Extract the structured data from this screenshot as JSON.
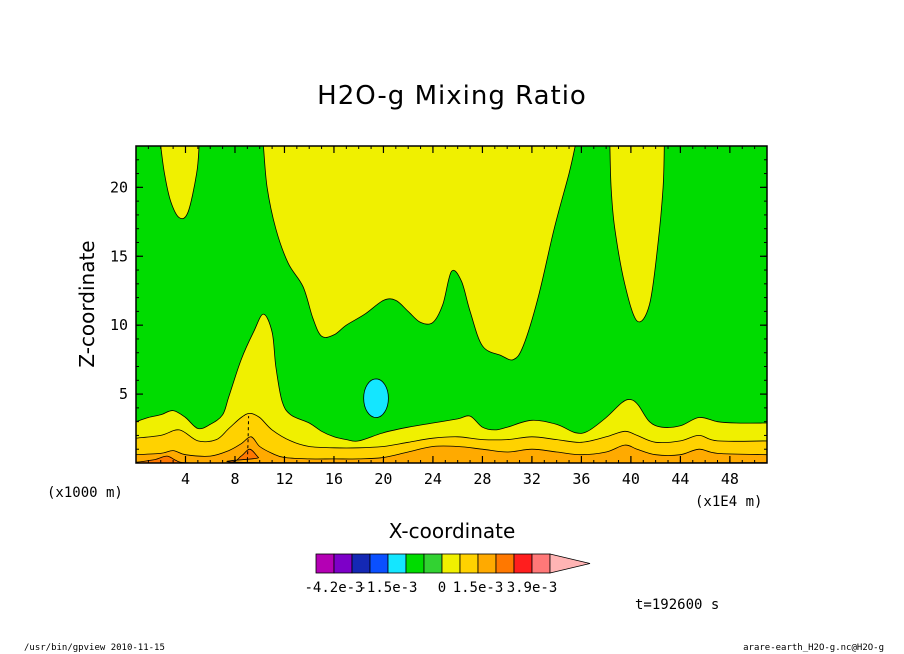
{
  "chart_data": {
    "type": "contour",
    "title": "H2O-g Mixing Ratio",
    "xlabel": "X-coordinate",
    "ylabel": "Z-coordinate",
    "x_scale_note": "(x1E4 m)",
    "y_scale_note": "(x1000 m)",
    "xlim": [
      0,
      51
    ],
    "ylim": [
      0,
      23
    ],
    "x_ticks": [
      4,
      8,
      12,
      16,
      20,
      24,
      28,
      32,
      36,
      40,
      44,
      48
    ],
    "y_ticks": [
      5,
      10,
      15,
      20
    ],
    "levels": {
      "palette": [
        "#b400b4",
        "#7d00c8",
        "#1428b4",
        "#0a50ff",
        "#14e6ff",
        "#00dc00",
        "#32d232",
        "#f0f000",
        "#ffd200",
        "#ffaa00",
        "#ff7800",
        "#ff1e1e",
        "#ff7878",
        "#ffb4b4"
      ],
      "labels": [
        "-4.2e-3",
        "-1.5e-3",
        "0",
        "1.5e-3",
        "3.9e-3"
      ]
    },
    "time_label": "t=192600 s",
    "footer_left": "/usr/bin/gpview  2010-11-15",
    "footer_right": "arare-earth_H2O-g.nc@H2O-g",
    "fields": {
      "base_color": "#00dc00",
      "yellow_top": [
        [
          2,
          23
        ],
        [
          2.3,
          21
        ],
        [
          2.8,
          19
        ],
        [
          3.5,
          17.8
        ],
        [
          4.2,
          18.2
        ],
        [
          4.9,
          21
        ],
        [
          5.1,
          23
        ]
      ],
      "yellow_mid": [
        [
          10.3,
          23
        ],
        [
          10.6,
          20
        ],
        [
          11.3,
          17
        ],
        [
          12.3,
          14.5
        ],
        [
          13.5,
          12.8
        ],
        [
          14.3,
          10.5
        ],
        [
          15,
          9.2
        ],
        [
          16,
          9.3
        ],
        [
          17,
          10
        ],
        [
          18.5,
          10.8
        ],
        [
          20,
          11.8
        ],
        [
          21,
          11.8
        ],
        [
          22,
          11
        ],
        [
          23,
          10.2
        ],
        [
          24,
          10.2
        ],
        [
          24.8,
          11.5
        ],
        [
          25.5,
          13.9
        ],
        [
          26.3,
          13.2
        ],
        [
          27,
          11
        ],
        [
          28,
          8.5
        ],
        [
          29.5,
          7.8
        ],
        [
          30.5,
          7.5
        ],
        [
          31.3,
          8.5
        ],
        [
          32.5,
          12
        ],
        [
          33.8,
          17
        ],
        [
          35,
          21
        ],
        [
          35.5,
          23
        ]
      ],
      "yellow_right": [
        [
          38.3,
          23
        ],
        [
          38.4,
          20
        ],
        [
          38.7,
          17
        ],
        [
          39.5,
          13
        ],
        [
          40.5,
          10.3
        ],
        [
          41.5,
          11.5
        ],
        [
          42.2,
          16
        ],
        [
          42.6,
          20
        ],
        [
          42.7,
          23
        ]
      ],
      "cyan_blob": {
        "cx": 19.4,
        "cy": 4.7,
        "rx": 1.0,
        "ry": 1.4
      },
      "yellow_bottom": [
        [
          0,
          3.0
        ],
        [
          1,
          3.3
        ],
        [
          2,
          3.5
        ],
        [
          3,
          3.8
        ],
        [
          4,
          3.3
        ],
        [
          5,
          2.5
        ],
        [
          6,
          2.8
        ],
        [
          7,
          3.5
        ],
        [
          7.5,
          4.8
        ],
        [
          8.5,
          7.5
        ],
        [
          9.5,
          9.5
        ],
        [
          10.3,
          10.8
        ],
        [
          11,
          9.5
        ],
        [
          11.3,
          7
        ],
        [
          11.8,
          4.5
        ],
        [
          12.5,
          3.5
        ],
        [
          14,
          2.9
        ],
        [
          15,
          2.3
        ],
        [
          16,
          1.9
        ],
        [
          17,
          1.7
        ],
        [
          18,
          1.6
        ],
        [
          20,
          2.2
        ],
        [
          22,
          2.6
        ],
        [
          24,
          2.9
        ],
        [
          26,
          3.2
        ],
        [
          27,
          3.4
        ],
        [
          28,
          2.6
        ],
        [
          29,
          2.4
        ],
        [
          30,
          2.6
        ],
        [
          32,
          3.1
        ],
        [
          34,
          2.8
        ],
        [
          35.5,
          2.2
        ],
        [
          36.5,
          2.3
        ],
        [
          38,
          3.3
        ],
        [
          39.3,
          4.4
        ],
        [
          40,
          4.6
        ],
        [
          40.6,
          4.2
        ],
        [
          41.5,
          3.0
        ],
        [
          42.5,
          2.6
        ],
        [
          44,
          2.7
        ],
        [
          45.5,
          3.3
        ],
        [
          47,
          3.0
        ],
        [
          48.5,
          2.9
        ],
        [
          51,
          2.9
        ]
      ],
      "gold_band": [
        [
          0,
          1.8
        ],
        [
          2,
          2.0
        ],
        [
          3.5,
          2.4
        ],
        [
          5,
          1.6
        ],
        [
          6.5,
          1.7
        ],
        [
          7.5,
          2.5
        ],
        [
          8.5,
          3.3
        ],
        [
          9.2,
          3.6
        ],
        [
          10,
          3.3
        ],
        [
          11,
          2.4
        ],
        [
          12.5,
          1.6
        ],
        [
          14,
          1.2
        ],
        [
          16,
          1.1
        ],
        [
          18,
          1.1
        ],
        [
          20,
          1.2
        ],
        [
          22,
          1.5
        ],
        [
          24,
          1.8
        ],
        [
          26,
          1.9
        ],
        [
          28,
          1.7
        ],
        [
          30,
          1.7
        ],
        [
          32,
          1.9
        ],
        [
          34,
          1.7
        ],
        [
          36,
          1.5
        ],
        [
          38,
          1.9
        ],
        [
          39.5,
          2.3
        ],
        [
          40.5,
          2.0
        ],
        [
          42,
          1.5
        ],
        [
          44,
          1.6
        ],
        [
          45.5,
          2.0
        ],
        [
          47,
          1.6
        ],
        [
          51,
          1.6
        ]
      ],
      "orange_band": [
        [
          0,
          0.6
        ],
        [
          2,
          0.7
        ],
        [
          3,
          0.9
        ],
        [
          4,
          0.6
        ],
        [
          6,
          0.5
        ],
        [
          7.5,
          0.9
        ],
        [
          8.5,
          1.4
        ],
        [
          9.3,
          1.9
        ],
        [
          10,
          1.2
        ],
        [
          11,
          0.7
        ],
        [
          12,
          0.4
        ],
        [
          14,
          0.3
        ],
        [
          16,
          0.3
        ],
        [
          18,
          0.3
        ],
        [
          20,
          0.4
        ],
        [
          22,
          0.8
        ],
        [
          24,
          1.2
        ],
        [
          26,
          1.2
        ],
        [
          28,
          1.0
        ],
        [
          30,
          0.8
        ],
        [
          32,
          1.0
        ],
        [
          34,
          0.8
        ],
        [
          36,
          0.6
        ],
        [
          38,
          0.8
        ],
        [
          39.5,
          1.3
        ],
        [
          40.5,
          1.0
        ],
        [
          42,
          0.6
        ],
        [
          44,
          0.6
        ],
        [
          45.5,
          1.0
        ],
        [
          47,
          0.7
        ],
        [
          51,
          0.6
        ]
      ],
      "deep_orange_band": [
        [
          0,
          0.05
        ],
        [
          1.5,
          0.25
        ],
        [
          2.5,
          0.5
        ],
        [
          3.2,
          0.2
        ],
        [
          4,
          0.02
        ],
        [
          7.5,
          0.02
        ],
        [
          8.5,
          0.5
        ],
        [
          9.2,
          1.0
        ],
        [
          9.9,
          0.4
        ],
        [
          10.5,
          0.02
        ],
        [
          51,
          0.02
        ]
      ],
      "dashed_line": [
        [
          9.0,
          0.2
        ],
        [
          9.05,
          1.5
        ],
        [
          9.1,
          3.4
        ]
      ]
    }
  }
}
